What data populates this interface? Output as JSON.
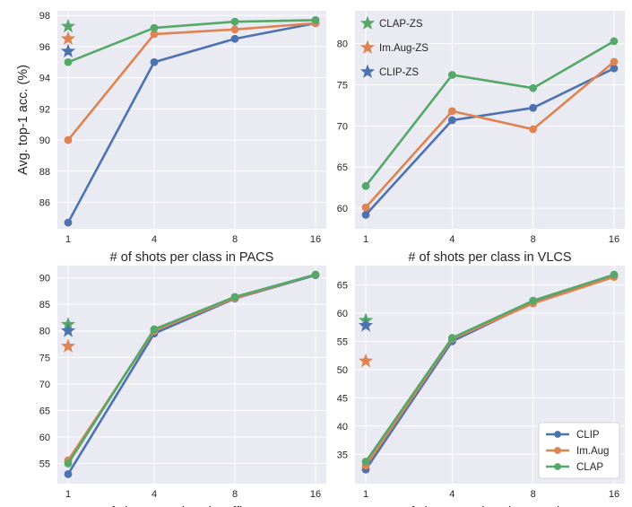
{
  "figure": {
    "colors": {
      "CLIP": "#4c72b0",
      "Im.Aug": "#dd8452",
      "CLAP": "#55a868"
    }
  },
  "chart_data": [
    {
      "type": "line",
      "x": [
        1,
        4,
        8,
        16
      ],
      "xticklabels": [
        "1",
        "4",
        "8",
        "16"
      ],
      "xlabel": "# of shots per class in PACS",
      "ylabel": "Avg. top-1 acc. (%)",
      "ylim": [
        84.3,
        98.3
      ],
      "yticks": [
        86,
        88,
        90,
        92,
        94,
        96,
        98
      ],
      "grid": true,
      "series": [
        {
          "name": "CLIP",
          "color": "#4c72b0",
          "values": [
            84.7,
            95.0,
            96.5,
            97.5
          ]
        },
        {
          "name": "Im.Aug",
          "color": "#dd8452",
          "values": [
            90.0,
            96.8,
            97.1,
            97.5
          ]
        },
        {
          "name": "CLAP",
          "color": "#55a868",
          "values": [
            95.0,
            97.2,
            97.6,
            97.7
          ]
        }
      ],
      "zero_shot": [
        {
          "name": "CLAP-ZS",
          "color": "#55a868",
          "value": 97.3
        },
        {
          "name": "Im.Aug-ZS",
          "color": "#dd8452",
          "value": 96.5
        },
        {
          "name": "CLIP-ZS",
          "color": "#4c72b0",
          "value": 95.7
        }
      ]
    },
    {
      "type": "line",
      "x": [
        1,
        4,
        8,
        16
      ],
      "xticklabels": [
        "1",
        "4",
        "8",
        "16"
      ],
      "xlabel": "# of shots per class in VLCS",
      "ylabel": "",
      "ylim": [
        57.5,
        84.0
      ],
      "yticks": [
        60,
        65,
        70,
        75,
        80
      ],
      "grid": true,
      "series": [
        {
          "name": "CLIP",
          "color": "#4c72b0",
          "values": [
            59.2,
            70.7,
            72.2,
            77.0
          ]
        },
        {
          "name": "Im.Aug",
          "color": "#dd8452",
          "values": [
            60.1,
            71.8,
            69.6,
            77.8
          ]
        },
        {
          "name": "CLAP",
          "color": "#55a868",
          "values": [
            62.7,
            76.2,
            74.6,
            80.3
          ]
        }
      ],
      "zero_shot_legend": {
        "placement": "top-left",
        "entries": [
          {
            "name": "CLAP-ZS",
            "color": "#55a868"
          },
          {
            "name": "Im.Aug-ZS",
            "color": "#dd8452"
          },
          {
            "name": "CLIP-ZS",
            "color": "#4c72b0"
          }
        ]
      }
    },
    {
      "type": "line",
      "x": [
        1,
        4,
        8,
        16
      ],
      "xticklabels": [
        "1",
        "4",
        "8",
        "16"
      ],
      "xlabel": "# of shots per class in OfficeHome",
      "ylabel": "",
      "ylim": [
        51.2,
        92.3
      ],
      "yticks": [
        55,
        60,
        65,
        70,
        75,
        80,
        85,
        90
      ],
      "grid": true,
      "series": [
        {
          "name": "CLIP",
          "color": "#4c72b0",
          "values": [
            53.0,
            79.5,
            86.1,
            90.5
          ]
        },
        {
          "name": "Im.Aug",
          "color": "#dd8452",
          "values": [
            55.6,
            80.0,
            86.2,
            90.6
          ]
        },
        {
          "name": "CLAP",
          "color": "#55a868",
          "values": [
            55.0,
            80.3,
            86.4,
            90.6
          ]
        }
      ],
      "zero_shot": [
        {
          "name": "CLAP-ZS",
          "color": "#55a868",
          "value": 81.2
        },
        {
          "name": "CLIP-ZS",
          "color": "#4c72b0",
          "value": 80.0
        },
        {
          "name": "Im.Aug-ZS",
          "color": "#dd8452",
          "value": 77.1
        }
      ]
    },
    {
      "type": "line",
      "x": [
        1,
        4,
        8,
        16
      ],
      "xticklabels": [
        "1",
        "4",
        "8",
        "16"
      ],
      "xlabel": "# of shots per class in DomainNet",
      "ylabel": "",
      "ylim": [
        29.8,
        68.4
      ],
      "yticks": [
        35,
        40,
        45,
        50,
        55,
        60,
        65
      ],
      "grid": true,
      "series": [
        {
          "name": "CLIP",
          "color": "#4c72b0",
          "values": [
            32.3,
            55.0,
            61.9,
            66.6
          ]
        },
        {
          "name": "Im.Aug",
          "color": "#dd8452",
          "values": [
            33.0,
            55.4,
            61.7,
            66.4
          ]
        },
        {
          "name": "CLAP",
          "color": "#55a868",
          "values": [
            33.7,
            55.6,
            62.2,
            66.8
          ]
        }
      ],
      "zero_shot": [
        {
          "name": "CLAP-ZS",
          "color": "#55a868",
          "value": 58.7
        },
        {
          "name": "CLIP-ZS",
          "color": "#4c72b0",
          "value": 57.8
        },
        {
          "name": "Im.Aug-ZS",
          "color": "#dd8452",
          "value": 51.5
        }
      ],
      "legend": {
        "placement": "lower-right",
        "entries": [
          {
            "name": "CLIP",
            "color": "#4c72b0"
          },
          {
            "name": "Im.Aug",
            "color": "#dd8452"
          },
          {
            "name": "CLAP",
            "color": "#55a868"
          }
        ]
      }
    }
  ]
}
